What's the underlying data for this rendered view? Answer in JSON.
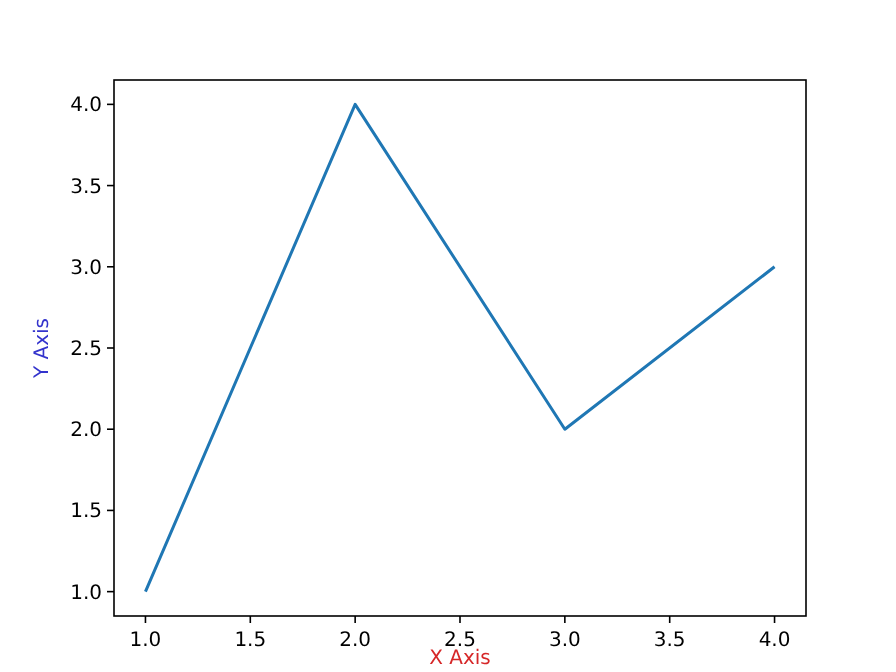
{
  "chart_data": {
    "type": "line",
    "xlabel": "X Axis",
    "ylabel": "Y Axis",
    "x": [
      1,
      2,
      3,
      4
    ],
    "series": [
      {
        "color": "#1f77b4",
        "values": [
          1,
          4,
          2,
          3
        ]
      }
    ],
    "xlim": [
      0.85,
      4.15
    ],
    "ylim": [
      0.85,
      4.15
    ],
    "xticks": [
      {
        "value": 1,
        "label": "1.0"
      },
      {
        "value": 1.5,
        "label": "1.5"
      },
      {
        "value": 2,
        "label": "2.0"
      },
      {
        "value": 2.5,
        "label": "2.5"
      },
      {
        "value": 3,
        "label": "3.0"
      },
      {
        "value": 3.5,
        "label": "3.5"
      },
      {
        "value": 4,
        "label": "4.0"
      }
    ],
    "yticks": [
      {
        "value": 1,
        "label": "1.0"
      },
      {
        "value": 1.5,
        "label": "1.5"
      },
      {
        "value": 2,
        "label": "2.0"
      },
      {
        "value": 2.5,
        "label": "2.5"
      },
      {
        "value": 3,
        "label": "3.0"
      },
      {
        "value": 3.5,
        "label": "3.5"
      },
      {
        "value": 4,
        "label": "4.0"
      }
    ],
    "grid": false,
    "marker": "none",
    "line_style": "solid"
  }
}
